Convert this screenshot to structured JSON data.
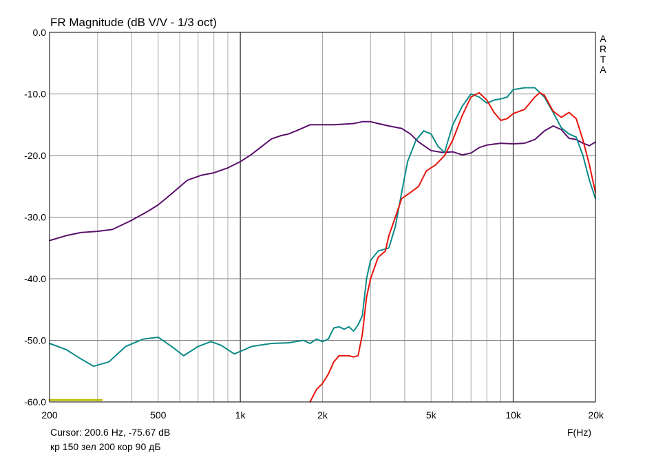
{
  "chart_data": {
    "type": "line",
    "title": "FR Magnitude (dB V/V - 1/3 oct)",
    "brand": "ARTA",
    "xlabel": "F(Hz)",
    "ylabel": "",
    "x_scale": "log",
    "xlim": [
      200,
      20000
    ],
    "ylim": [
      -60,
      0
    ],
    "grid": true,
    "x_ticks": [
      {
        "value": 200,
        "label": "200"
      },
      {
        "value": 500,
        "label": "500"
      },
      {
        "value": 1000,
        "label": "1k"
      },
      {
        "value": 2000,
        "label": "2k"
      },
      {
        "value": 5000,
        "label": "5k"
      },
      {
        "value": 10000,
        "label": "10k"
      },
      {
        "value": 20000,
        "label": "20k"
      }
    ],
    "y_ticks": [
      {
        "value": 0,
        "label": "0.0"
      },
      {
        "value": -10,
        "label": "-10.0"
      },
      {
        "value": -20,
        "label": "-20.0"
      },
      {
        "value": -30,
        "label": "-30.0"
      },
      {
        "value": -40,
        "label": "-40.0"
      },
      {
        "value": -50,
        "label": "-50.0"
      },
      {
        "value": -60,
        "label": "-60.0"
      }
    ],
    "series": [
      {
        "color": "#5a0f6b",
        "x": [
          200,
          230,
          260,
          300,
          340,
          400,
          460,
          500,
          560,
          640,
          720,
          800,
          900,
          1000,
          1100,
          1200,
          1300,
          1400,
          1500,
          1600,
          1700,
          1800,
          1900,
          2000,
          2200,
          2400,
          2600,
          2800,
          3000,
          3200,
          3500,
          3900,
          4200,
          4500,
          5000,
          5500,
          6000,
          6500,
          7000,
          7500,
          8000,
          9000,
          10000,
          11000,
          12000,
          13000,
          14000,
          15000,
          16000,
          17000,
          18000,
          19000,
          20000
        ],
        "y": [
          -33.8,
          -33.0,
          -32.5,
          -32.3,
          -32.0,
          -30.5,
          -29.0,
          -28.0,
          -26.2,
          -24.0,
          -23.2,
          -22.8,
          -22.0,
          -21.0,
          -19.8,
          -18.5,
          -17.3,
          -16.8,
          -16.5,
          -16.0,
          -15.5,
          -15.0,
          -15.0,
          -15.0,
          -15.0,
          -14.9,
          -14.8,
          -14.5,
          -14.5,
          -14.8,
          -15.2,
          -15.6,
          -16.5,
          -17.8,
          -19.2,
          -19.5,
          -19.4,
          -19.9,
          -19.6,
          -18.7,
          -18.3,
          -18.0,
          -18.1,
          -18.0,
          -17.4,
          -16.0,
          -15.2,
          -15.8,
          -17.2,
          -17.4,
          -18.0,
          -18.4,
          -17.8
        ]
      },
      {
        "color": "#0a8a88",
        "x": [
          200,
          230,
          260,
          290,
          330,
          380,
          440,
          500,
          560,
          620,
          700,
          780,
          850,
          950,
          1000,
          1100,
          1300,
          1500,
          1700,
          1800,
          1900,
          2000,
          2100,
          2200,
          2300,
          2400,
          2500,
          2600,
          2700,
          2800,
          2900,
          3000,
          3200,
          3500,
          3700,
          3900,
          4100,
          4400,
          4700,
          5000,
          5300,
          5600,
          6000,
          6500,
          7000,
          7500,
          8000,
          8500,
          9000,
          9500,
          10000,
          11000,
          12000,
          13000,
          14000,
          15000,
          16000,
          17000,
          18000,
          19000,
          20000
        ],
        "y": [
          -50.5,
          -51.5,
          -53.0,
          -54.2,
          -53.5,
          -51.0,
          -49.8,
          -49.5,
          -51.0,
          -52.5,
          -51.0,
          -50.2,
          -50.8,
          -52.2,
          -51.8,
          -51.0,
          -50.5,
          -50.4,
          -50.0,
          -50.5,
          -49.8,
          -50.2,
          -49.8,
          -48.0,
          -47.8,
          -48.2,
          -47.8,
          -48.5,
          -47.5,
          -46.0,
          -40.0,
          -37.0,
          -35.5,
          -35.0,
          -31.5,
          -26.0,
          -21.0,
          -17.5,
          -16.0,
          -16.5,
          -18.5,
          -19.5,
          -15.0,
          -12.0,
          -10.0,
          -10.5,
          -11.5,
          -11.0,
          -10.8,
          -10.5,
          -9.3,
          -9.0,
          -9.0,
          -10.5,
          -13.0,
          -15.5,
          -16.5,
          -17.0,
          -20.0,
          -24.0,
          -27.0
        ]
      },
      {
        "color": "#e8140c",
        "x": [
          1800,
          1900,
          2000,
          2100,
          2200,
          2300,
          2400,
          2500,
          2600,
          2700,
          2800,
          2900,
          3000,
          3200,
          3400,
          3500,
          3700,
          3900,
          4200,
          4500,
          4800,
          5200,
          5600,
          6000,
          6500,
          7000,
          7500,
          8000,
          8500,
          9000,
          9500,
          10000,
          11000,
          12000,
          12500,
          13000,
          14000,
          15000,
          16000,
          17000,
          18000,
          19000,
          20000
        ],
        "y": [
          -60.0,
          -58.0,
          -57.0,
          -55.5,
          -53.5,
          -52.5,
          -52.5,
          -52.5,
          -52.7,
          -52.5,
          -49.0,
          -43.0,
          -40.0,
          -36.5,
          -35.5,
          -33.0,
          -30.0,
          -27.0,
          -26.0,
          -25.0,
          -22.5,
          -21.5,
          -20.0,
          -17.5,
          -13.5,
          -10.5,
          -9.8,
          -11.0,
          -13.0,
          -14.3,
          -14.0,
          -13.2,
          -12.5,
          -10.5,
          -9.8,
          -10.2,
          -12.8,
          -13.8,
          -13.0,
          -14.0,
          -17.5,
          -21.5,
          -26.0
        ]
      },
      {
        "color": "#c0c010",
        "x": [
          200,
          310
        ],
        "y": [
          -59.7,
          -59.7
        ]
      }
    ]
  },
  "footer": {
    "cursor": "Cursor: 200.6 Hz, -75.67 dB",
    "legend_note": "кр 150 зел 200 кор 90 дБ"
  }
}
